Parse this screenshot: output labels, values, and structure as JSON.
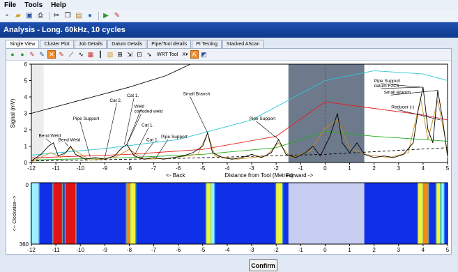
{
  "menu": [
    "File",
    "Tools",
    "Help"
  ],
  "toolbar_icons": [
    "new-icon",
    "open-icon",
    "save-icon",
    "print-icon",
    "cut-icon",
    "copy-icon",
    "paste-icon",
    "help-icon",
    "play-icon",
    "tools-icon"
  ],
  "window_title": "Analysis - Long. 60kHz, 10 cycles",
  "tabs": [
    "Single View",
    "Cluster Plot",
    "Job Details",
    "Datum Details",
    "Pipe/Tool details",
    "PI Testing",
    "Stacked AScan"
  ],
  "active_tab": 0,
  "chart_toolbar": {
    "wrt_tool": "WRT Tool",
    "x_menu": "X▾",
    "a_button": "A"
  },
  "chart_data": {
    "type": "line",
    "xlabel": "Distance from Tool (Metres)",
    "ylabel": "Signal (mV)",
    "back_label": "<- Back",
    "forward_label": "Forward ->",
    "xlim": [
      -12,
      5
    ],
    "ylim": [
      0,
      6
    ],
    "xticks": [
      -12,
      -11,
      -10,
      -9,
      -8,
      -7,
      -6,
      -5,
      -4,
      -3,
      -2,
      -1,
      0,
      1,
      2,
      3,
      4,
      5
    ],
    "yticks": [
      0,
      1,
      2,
      3,
      4,
      5,
      6
    ],
    "dead_zone": [
      -1.5,
      1.6
    ],
    "left_shade": [
      -12,
      -11.5
    ],
    "distance_amplitude_curves": [
      {
        "color": "#000000",
        "points": [
          [
            -12,
            3.0
          ],
          [
            -10,
            3.8
          ],
          [
            -8,
            4.6
          ],
          [
            -6.5,
            5.3
          ],
          [
            -5.5,
            6.0
          ]
        ]
      },
      {
        "color": "#2fc7d6",
        "points": [
          [
            -12,
            0.45
          ],
          [
            -9,
            0.85
          ],
          [
            -6,
            1.4
          ],
          [
            -3,
            2.6
          ],
          [
            -1.5,
            3.8
          ],
          [
            0,
            5.0
          ],
          [
            2,
            5.6
          ],
          [
            4,
            5.4
          ],
          [
            5,
            5.0
          ]
        ]
      },
      {
        "color": "#e51f1f",
        "points": [
          [
            -12,
            0.28
          ],
          [
            -8,
            0.5
          ],
          [
            -5,
            0.8
          ],
          [
            -2,
            1.6
          ],
          [
            0,
            3.7
          ],
          [
            2,
            3.3
          ],
          [
            4,
            2.9
          ],
          [
            5,
            2.6
          ]
        ]
      },
      {
        "color": "#1fae1f",
        "points": [
          [
            -12,
            0.15
          ],
          [
            -8,
            0.3
          ],
          [
            -5,
            0.5
          ],
          [
            -2,
            0.9
          ],
          [
            0,
            1.9
          ],
          [
            2,
            1.6
          ],
          [
            4,
            1.4
          ],
          [
            5,
            1.3
          ]
        ]
      },
      {
        "color": "#000000",
        "dashed": true,
        "points": [
          [
            -12,
            0.1
          ],
          [
            -6,
            0.25
          ],
          [
            0,
            0.5
          ],
          [
            5,
            0.9
          ]
        ]
      }
    ],
    "black_trace": [
      [
        -12,
        0.1
      ],
      [
        -11.6,
        0.5
      ],
      [
        -11.3,
        1.0
      ],
      [
        -11.1,
        1.2
      ],
      [
        -10.9,
        0.4
      ],
      [
        -10.6,
        0.6
      ],
      [
        -10.4,
        1.0
      ],
      [
        -10.2,
        0.5
      ],
      [
        -9.8,
        0.2
      ],
      [
        -9.4,
        0.3
      ],
      [
        -9.0,
        0.2
      ],
      [
        -8.6,
        0.4
      ],
      [
        -8.3,
        0.9
      ],
      [
        -8.1,
        1.1
      ],
      [
        -7.8,
        0.4
      ],
      [
        -7.4,
        0.2
      ],
      [
        -7.0,
        0.3
      ],
      [
        -6.6,
        0.2
      ],
      [
        -6.2,
        0.3
      ],
      [
        -5.8,
        0.4
      ],
      [
        -5.4,
        0.6
      ],
      [
        -5.0,
        1.0
      ],
      [
        -4.8,
        1.8
      ],
      [
        -4.6,
        0.6
      ],
      [
        -4.2,
        0.3
      ],
      [
        -3.8,
        0.2
      ],
      [
        -3.4,
        0.3
      ],
      [
        -3.0,
        0.5
      ],
      [
        -2.6,
        0.3
      ],
      [
        -2.2,
        0.6
      ],
      [
        -1.9,
        1.4
      ],
      [
        -1.6,
        0.5
      ],
      [
        -1.2,
        0.3
      ],
      [
        -0.8,
        0.6
      ],
      [
        -0.5,
        1.0
      ],
      [
        -0.2,
        0.4
      ],
      [
        0.2,
        1.6
      ],
      [
        0.5,
        3.0
      ],
      [
        0.7,
        1.2
      ],
      [
        1.0,
        0.6
      ],
      [
        1.3,
        1.2
      ],
      [
        1.6,
        0.5
      ],
      [
        2.0,
        0.3
      ],
      [
        2.4,
        0.4
      ],
      [
        2.8,
        0.3
      ],
      [
        3.2,
        0.5
      ],
      [
        3.6,
        1.2
      ],
      [
        3.8,
        3.2
      ],
      [
        4.0,
        4.6
      ],
      [
        4.2,
        2.0
      ],
      [
        4.4,
        1.2
      ],
      [
        4.6,
        4.4
      ],
      [
        4.8,
        2.6
      ],
      [
        5.0,
        0.4
      ]
    ],
    "orange_trace": [
      [
        -12,
        0.05
      ],
      [
        -11.2,
        0.6
      ],
      [
        -10.8,
        0.3
      ],
      [
        -10.4,
        0.9
      ],
      [
        -9.6,
        0.15
      ],
      [
        -8.6,
        0.3
      ],
      [
        -8.0,
        0.8
      ],
      [
        -7.4,
        0.2
      ],
      [
        -6.4,
        0.25
      ],
      [
        -5.2,
        0.5
      ],
      [
        -4.8,
        1.8
      ],
      [
        -4.5,
        0.4
      ],
      [
        -3.6,
        0.2
      ],
      [
        -2.4,
        0.4
      ],
      [
        -1.9,
        1.2
      ],
      [
        -1.4,
        0.3
      ],
      [
        -0.6,
        0.7
      ],
      [
        0.0,
        2.1
      ],
      [
        0.5,
        2.6
      ],
      [
        1.0,
        0.9
      ],
      [
        1.6,
        0.5
      ],
      [
        2.6,
        0.3
      ],
      [
        3.4,
        0.6
      ],
      [
        3.9,
        3.9
      ],
      [
        4.2,
        1.4
      ],
      [
        4.6,
        3.8
      ],
      [
        4.9,
        1.5
      ],
      [
        5.0,
        0.3
      ]
    ],
    "annotations": [
      {
        "text": "Bend Weld",
        "x": -11.7,
        "y": 1.55,
        "px": -11.2,
        "py": 1.2
      },
      {
        "text": "Bend Weld",
        "x": -10.9,
        "y": 1.3,
        "px": -10.5,
        "py": 1.0
      },
      {
        "text": "Pipe Support",
        "x": -10.3,
        "y": 2.6,
        "px": -9.6,
        "py": 0.35
      },
      {
        "text": "Cat 2.",
        "x": -8.8,
        "y": 3.7,
        "px": -9.0,
        "py": 0.3
      },
      {
        "text": "Cat 1.",
        "x": -8.1,
        "y": 4.0,
        "px": -8.2,
        "py": 1.1
      },
      {
        "text": "Weld",
        "x": -7.8,
        "y": 3.35,
        "px": -8.1,
        "py": 1.1
      },
      {
        "text": "corroded weld",
        "x": -7.8,
        "y": 3.05,
        "px": -8.1,
        "py": 1.1
      },
      {
        "text": "Cat 1.",
        "x": -7.5,
        "y": 2.2,
        "px": -7.8,
        "py": 0.4
      },
      {
        "text": "Cat 1.",
        "x": -7.3,
        "y": 1.3,
        "px": -7.5,
        "py": 0.25
      },
      {
        "text": "Pipe Support",
        "x": -6.7,
        "y": 1.5,
        "px": -6.9,
        "py": 0.3
      },
      {
        "text": "Small Branch",
        "x": -5.8,
        "y": 4.1,
        "px": -4.8,
        "py": 1.8
      },
      {
        "text": "Pipe Support",
        "x": -3.1,
        "y": 2.6,
        "px": -1.9,
        "py": 1.4
      },
      {
        "text": "Pipe Support",
        "x": 2.0,
        "y": 4.9,
        "px": 3.9,
        "py": 4.6
      },
      {
        "text": "datum F2C5",
        "x": 2.0,
        "y": 4.6,
        "px": 4.0,
        "py": 4.6
      },
      {
        "text": "Small Branch",
        "x": 2.4,
        "y": 4.2,
        "px": 4.6,
        "py": 4.4
      },
      {
        "text": "Reducer (-)",
        "x": 2.7,
        "y": 3.3,
        "px": 4.7,
        "py": 2.6
      }
    ],
    "heatmap": {
      "ylabel": "<-- Clockwise-->",
      "yticks": [
        "0",
        "360"
      ],
      "dead_zone": [
        -1.5,
        1.6
      ],
      "hotspots": [
        {
          "x": -12.0,
          "w": 0.3,
          "level": "cyan"
        },
        {
          "x": -11.1,
          "w": 0.35,
          "level": "hot"
        },
        {
          "x": -10.6,
          "w": 0.4,
          "level": "hot"
        },
        {
          "x": -8.1,
          "w": 0.25,
          "level": "warm"
        },
        {
          "x": -7.95,
          "w": 0.2,
          "level": "yellow"
        },
        {
          "x": -4.85,
          "w": 0.2,
          "level": "yellow"
        },
        {
          "x": -4.65,
          "w": 0.12,
          "level": "cyan"
        },
        {
          "x": -2.0,
          "w": 0.25,
          "level": "yellow"
        },
        {
          "x": 3.8,
          "w": 0.18,
          "level": "yellow"
        },
        {
          "x": 4.0,
          "w": 0.2,
          "level": "warm"
        },
        {
          "x": 4.55,
          "w": 0.15,
          "level": "yellow"
        },
        {
          "x": 4.75,
          "w": 0.1,
          "level": "cyan"
        }
      ]
    }
  },
  "confirm_label": "Confirm"
}
